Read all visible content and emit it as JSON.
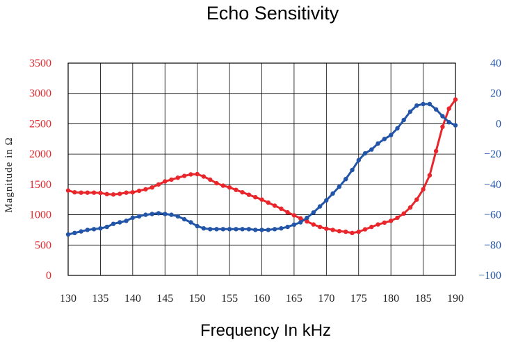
{
  "chart_data": {
    "type": "line",
    "title": "Echo Sensitivity",
    "xlabel": "Frequency In kHz",
    "ylabel": "Magnitude in Ω",
    "y2label": "",
    "xlim": [
      130,
      190
    ],
    "ylim": [
      0,
      3500
    ],
    "y2lim": [
      -100,
      40
    ],
    "x_ticks": [
      "130",
      "135",
      "140",
      "145",
      "150",
      "155",
      "160",
      "165",
      "170",
      "175",
      "180",
      "185",
      "190"
    ],
    "y_ticks": [
      "0",
      "500",
      "1000",
      "1500",
      "2000",
      "2500",
      "3000",
      "3500"
    ],
    "y2_ticks": [
      "−100",
      "−80",
      "−60",
      "−40",
      "−20",
      "0",
      "20",
      "40"
    ],
    "grid": true,
    "legend": "none",
    "series": [
      {
        "axis": "left",
        "color": "#e8262b",
        "x": [
          130,
          131,
          132,
          133,
          134,
          135,
          136,
          137,
          138,
          139,
          140,
          141,
          142,
          143,
          144,
          145,
          146,
          147,
          148,
          149,
          150,
          151,
          152,
          153,
          154,
          155,
          156,
          157,
          158,
          159,
          160,
          161,
          162,
          163,
          164,
          165,
          166,
          167,
          168,
          169,
          170,
          171,
          172,
          173,
          174,
          175,
          176,
          177,
          178,
          179,
          180,
          181,
          182,
          183,
          184,
          185,
          186,
          187,
          188,
          189,
          190
        ],
        "values": [
          1400,
          1370,
          1365,
          1365,
          1365,
          1360,
          1340,
          1335,
          1345,
          1365,
          1370,
          1395,
          1420,
          1450,
          1500,
          1550,
          1580,
          1610,
          1640,
          1665,
          1670,
          1630,
          1580,
          1520,
          1480,
          1450,
          1410,
          1370,
          1330,
          1290,
          1250,
          1200,
          1150,
          1100,
          1040,
          990,
          940,
          890,
          840,
          800,
          770,
          750,
          730,
          720,
          700,
          720,
          760,
          800,
          840,
          870,
          900,
          950,
          1020,
          1120,
          1250,
          1420,
          1650,
          2050,
          2450,
          2750,
          2900
        ]
      },
      {
        "axis": "right",
        "color": "#2254a8",
        "x": [
          130,
          131,
          132,
          133,
          134,
          135,
          136,
          137,
          138,
          139,
          140,
          141,
          142,
          143,
          144,
          145,
          146,
          147,
          148,
          149,
          150,
          151,
          152,
          153,
          154,
          155,
          156,
          157,
          158,
          159,
          160,
          161,
          162,
          163,
          164,
          165,
          166,
          167,
          168,
          169,
          170,
          171,
          172,
          173,
          174,
          175,
          176,
          177,
          178,
          179,
          180,
          181,
          182,
          183,
          184,
          185,
          186,
          187,
          188,
          189,
          190
        ],
        "values": [
          -73,
          -72,
          -71,
          -70,
          -69.5,
          -69,
          -68,
          -66,
          -65,
          -64,
          -62,
          -61,
          -60,
          -59.5,
          -59,
          -59.5,
          -60,
          -61,
          -63,
          -65,
          -67.5,
          -69,
          -69.5,
          -69.5,
          -69.5,
          -69.5,
          -69.5,
          -69.5,
          -69.5,
          -70,
          -70,
          -70,
          -69.5,
          -69,
          -68,
          -66.5,
          -65,
          -62,
          -58.5,
          -54.5,
          -50.5,
          -46,
          -41.5,
          -36.5,
          -30.5,
          -24,
          -19.5,
          -17,
          -13,
          -10,
          -7.5,
          -3,
          2.5,
          8,
          12,
          13,
          13,
          9.5,
          5,
          1,
          -1
        ]
      }
    ]
  }
}
